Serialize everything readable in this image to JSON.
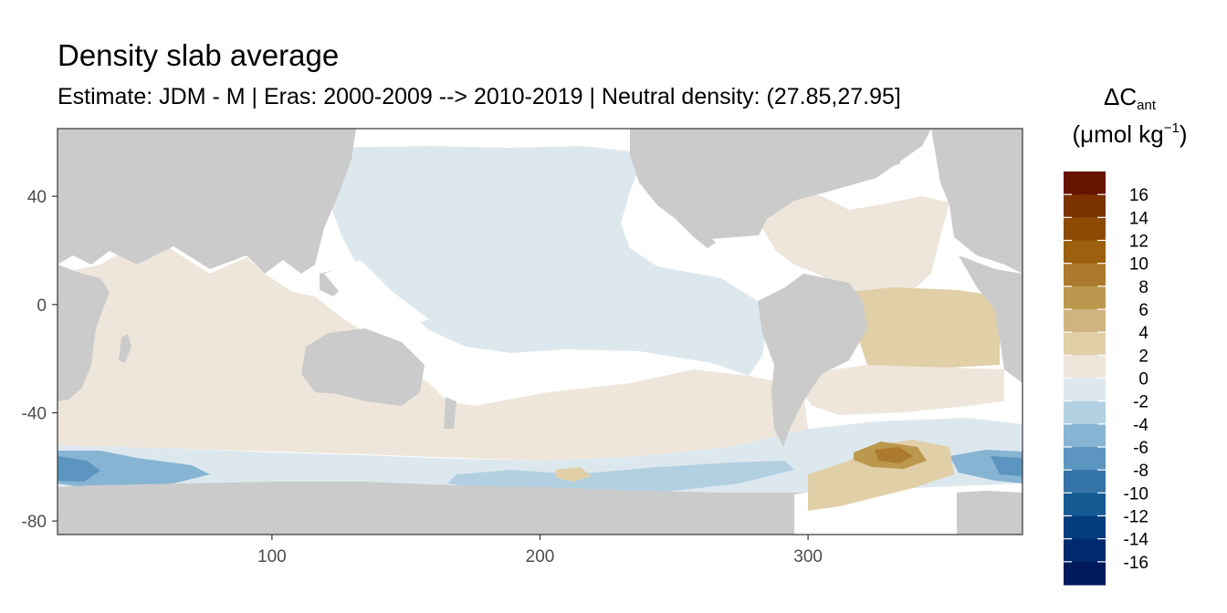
{
  "title": "Density slab average",
  "subtitle": "Estimate: JDM - M | Eras: 2000-2009 --> 2010-2019 | Neutral density: (27.85,27.95]",
  "legend": {
    "symbol": "ΔC",
    "symbol_sub": "ant",
    "unit_open": "(μmol kg",
    "unit_sup": "−1",
    "unit_close": ")",
    "labels": [
      "16",
      "14",
      "12",
      "10",
      "8",
      "6",
      "4",
      "2",
      "0",
      "-2",
      "-4",
      "-6",
      "-8",
      "-10",
      "-12",
      "-14",
      "-16"
    ],
    "colors": [
      "#661400",
      "#7a3203",
      "#8c4a05",
      "#9c600f",
      "#ab7a2e",
      "#bc984f",
      "#cfb47e",
      "#e0cfa7",
      "#eee6da",
      "#dde8ee",
      "#b3d0e2",
      "#87b4d3",
      "#5b95c0",
      "#3574a8",
      "#155a92",
      "#033d7e",
      "#012a6e",
      "#001a5c"
    ]
  },
  "map": {
    "x_axis": {
      "ticks": [
        "100",
        "200",
        "300"
      ],
      "values": [
        100,
        200,
        300
      ],
      "range": [
        20,
        380
      ]
    },
    "y_axis": {
      "ticks": [
        "40",
        "0",
        "-40",
        "-80"
      ],
      "values": [
        40,
        0,
        -40,
        -80
      ],
      "range": [
        -85,
        65
      ]
    },
    "colors": {
      "land": "#cbcbcb",
      "no_data": "#ffffff",
      "panel_border": "#333333",
      "tick_text": "#4d4d4d"
    }
  }
}
